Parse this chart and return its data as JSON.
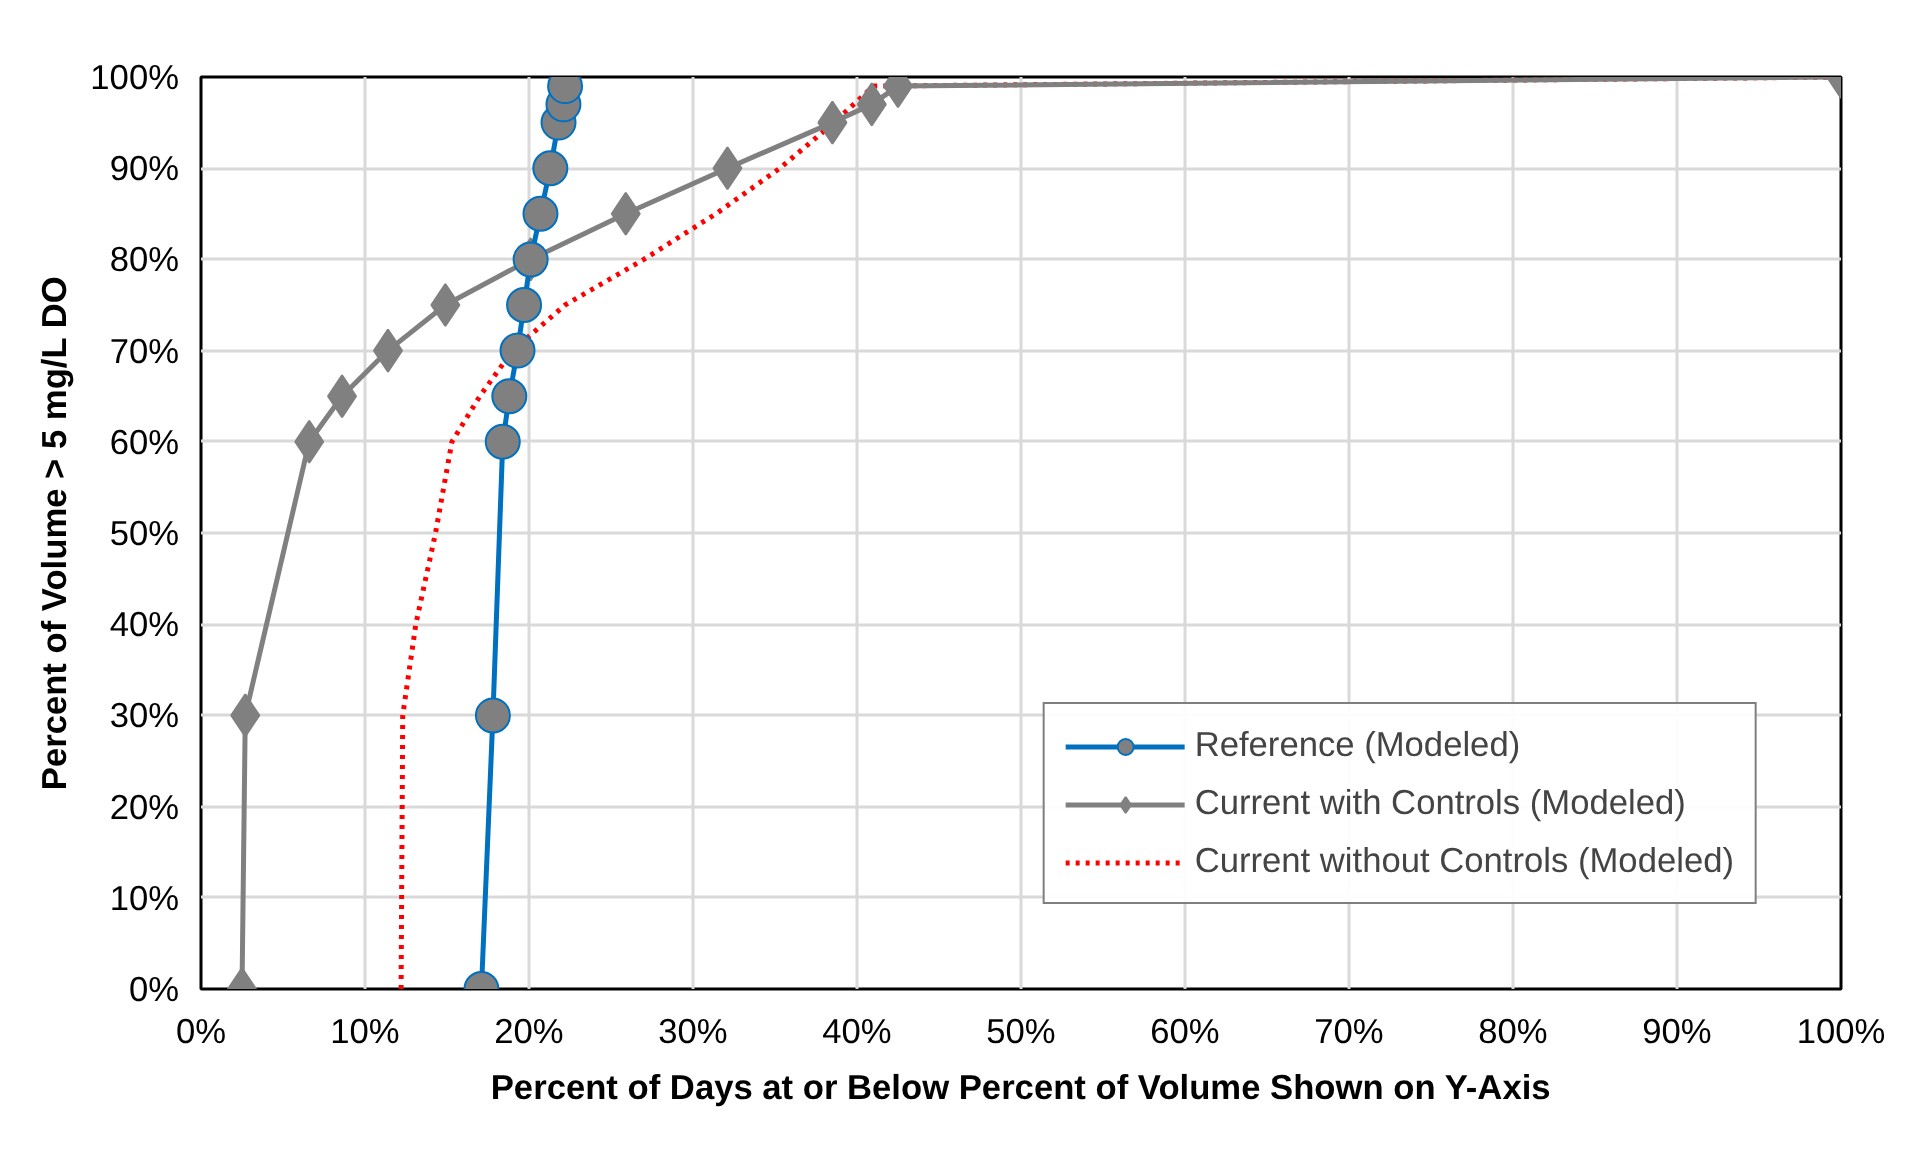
{
  "chart_data": {
    "type": "line",
    "xlabel": "Percent of Days at or Below Percent of Volume Shown on Y-Axis",
    "ylabel": "Percent of Volume > 5 mg/L DO",
    "xlim": [
      0,
      100
    ],
    "ylim": [
      0,
      100
    ],
    "xticks": [
      {
        "value": 0,
        "label": "0%"
      },
      {
        "value": 10,
        "label": "10%"
      },
      {
        "value": 20,
        "label": "20%"
      },
      {
        "value": 30,
        "label": "30%"
      },
      {
        "value": 40,
        "label": "40%"
      },
      {
        "value": 50,
        "label": "50%"
      },
      {
        "value": 60,
        "label": "60%"
      },
      {
        "value": 70,
        "label": "70%"
      },
      {
        "value": 80,
        "label": "80%"
      },
      {
        "value": 90,
        "label": "90%"
      },
      {
        "value": 100,
        "label": "100%"
      }
    ],
    "yticks": [
      {
        "value": 0,
        "label": "0%"
      },
      {
        "value": 10,
        "label": "10%"
      },
      {
        "value": 20,
        "label": "20%"
      },
      {
        "value": 30,
        "label": "30%"
      },
      {
        "value": 40,
        "label": "40%"
      },
      {
        "value": 50,
        "label": "50%"
      },
      {
        "value": 60,
        "label": "60%"
      },
      {
        "value": 70,
        "label": "70%"
      },
      {
        "value": 80,
        "label": "80%"
      },
      {
        "value": 90,
        "label": "90%"
      },
      {
        "value": 100,
        "label": "100%"
      }
    ],
    "grid": true,
    "legend": "bottom right",
    "series": [
      {
        "name": "Reference (Modeled)",
        "color": "#0070c0",
        "marker": "circle",
        "line_style": "solid",
        "x": [
          17.1,
          17.8,
          18.4,
          18.8,
          19.3,
          19.7,
          20.1,
          20.7,
          21.3,
          21.8,
          22.1,
          22.2
        ],
        "values": [
          0,
          30,
          60,
          65,
          70,
          75,
          80,
          85,
          90,
          95,
          97,
          99
        ]
      },
      {
        "name": "Current with Controls (Modeled)",
        "color": "#808080",
        "marker": "diamond",
        "line_style": "solid",
        "x": [
          2.5,
          2.7,
          6.6,
          8.6,
          11.4,
          14.9,
          20.1,
          25.9,
          32.1,
          38.5,
          40.9,
          42.5,
          100
        ],
        "values": [
          0,
          30,
          60,
          65,
          70,
          75,
          80,
          85,
          90,
          95,
          97,
          99,
          100
        ]
      },
      {
        "name": "Current without Controls (Modeled)",
        "color": "#ff0000",
        "marker": "none",
        "line_style": "dotted",
        "x": [
          12.2,
          12.3,
          13.1,
          14.3,
          15.3,
          17.0,
          19.0,
          22.2,
          27.0,
          31.4,
          35.3,
          38.6,
          41.0,
          100
        ],
        "values": [
          0,
          30,
          40,
          50,
          60,
          65,
          70,
          75,
          80,
          85,
          90,
          95,
          99,
          100
        ]
      }
    ]
  }
}
